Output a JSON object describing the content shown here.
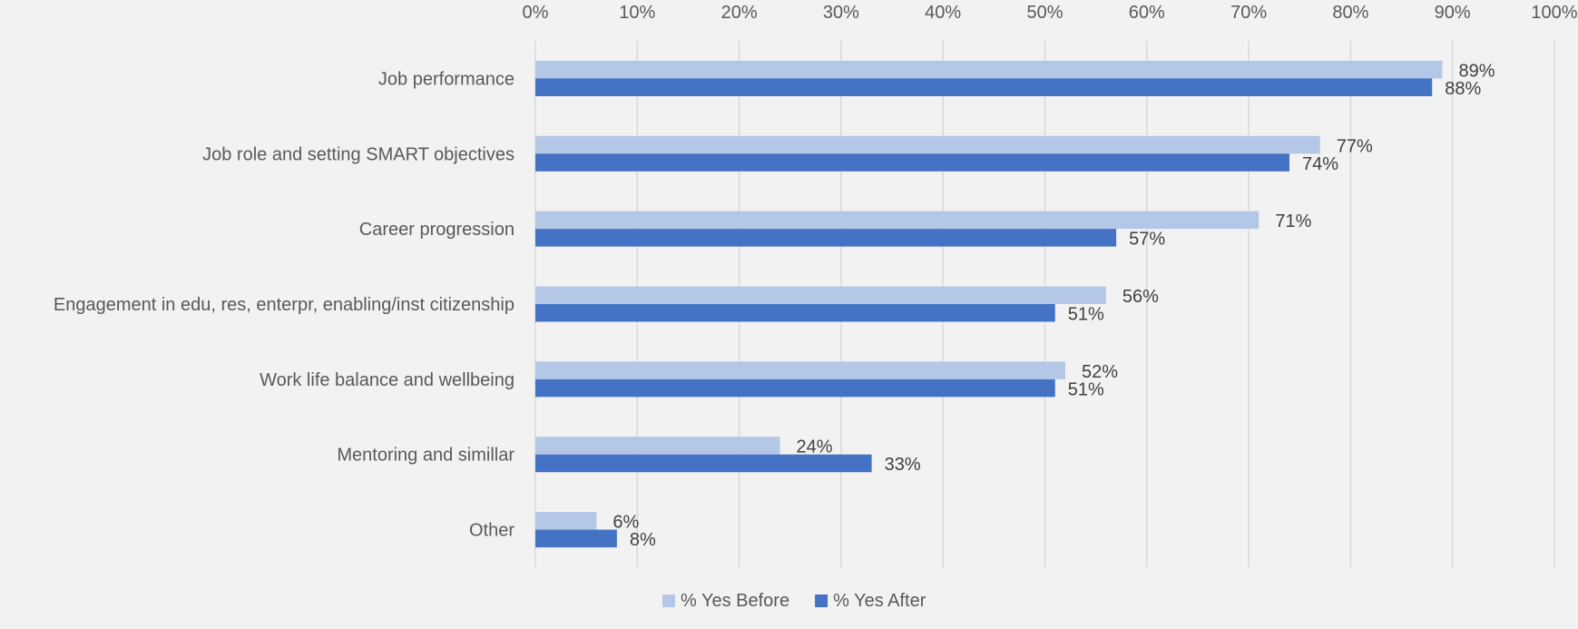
{
  "chart_data": {
    "type": "bar",
    "orientation": "horizontal",
    "title": "",
    "xlabel": "",
    "ylabel": "",
    "xlim": [
      0,
      100
    ],
    "x_ticks": [
      "0%",
      "10%",
      "20%",
      "30%",
      "40%",
      "50%",
      "60%",
      "70%",
      "80%",
      "90%",
      "100%"
    ],
    "x_axis_position": "top",
    "grid": true,
    "legend_position": "bottom",
    "categories": [
      "Job performance",
      "Job role and setting SMART objectives",
      "Career progression",
      "Engagement in edu, res, enterpr, enabling/inst citizenship",
      "Work life balance and wellbeing",
      "Mentoring and simillar",
      "Other"
    ],
    "series": [
      {
        "name": "% Yes Before",
        "color": "#b4c7e7",
        "values": [
          89,
          77,
          71,
          56,
          52,
          24,
          6
        ],
        "labels": [
          "89%",
          "77%",
          "71%",
          "56%",
          "52%",
          "24%",
          "6%"
        ]
      },
      {
        "name": "% Yes After",
        "color": "#4472c4",
        "values": [
          88,
          74,
          57,
          51,
          51,
          33,
          8
        ],
        "labels": [
          "88%",
          "74%",
          "57%",
          "51%",
          "51%",
          "33%",
          "8%"
        ]
      }
    ]
  }
}
